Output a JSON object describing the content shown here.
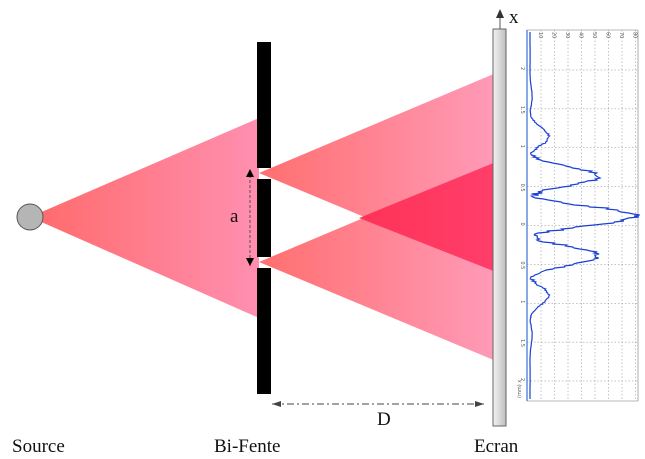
{
  "labels": {
    "source": "Source",
    "slits": "Bi-Fente",
    "screen": "Ecran",
    "slit_separation": "a",
    "distance": "D",
    "axis": "x"
  },
  "plot": {
    "axis_label": "(mm) x",
    "y_ticks": [
      "2",
      "1.5",
      "1",
      "0.5",
      "0",
      "0.5",
      "1",
      "1.5",
      "2"
    ],
    "x_ticks": [
      "10",
      "20",
      "30",
      "40",
      "50",
      "60",
      "70",
      "80"
    ]
  },
  "colors": {
    "beam_light": "#ff8ea6",
    "beam_dark": "#ff5a6a",
    "overlap": "#ff3355",
    "profile": "#1a3fd6",
    "slit_wall": "#000000",
    "screen": "#d6d6d6"
  }
}
